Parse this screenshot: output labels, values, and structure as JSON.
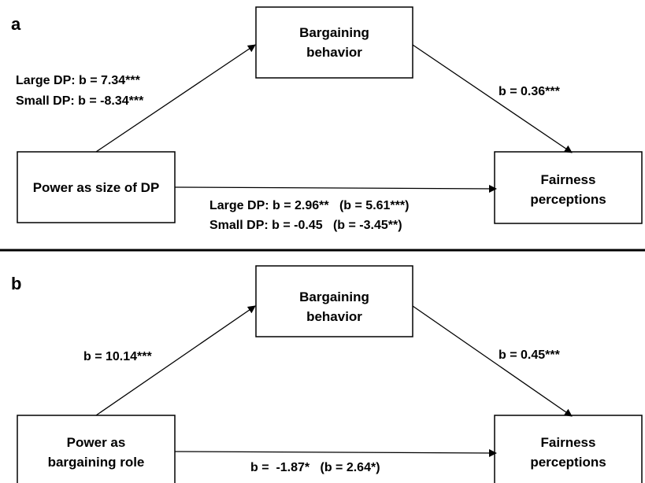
{
  "panels": [
    {
      "letter": "a",
      "nodes": {
        "mediator": [
          "Bargaining",
          "behavior"
        ],
        "predictor": [
          "Power as size of DP"
        ],
        "outcome": [
          "Fairness",
          "perceptions"
        ]
      },
      "paths": {
        "a_path": [
          "Large DP: b = 7.34***",
          "Small DP: b = -8.34***"
        ],
        "b_path": [
          "b = 0.36***"
        ],
        "c_path": [
          "Large DP: b = 2.96**   (b = 5.61***)",
          "Small DP: b = -0.45   (b = -3.45**)"
        ]
      }
    },
    {
      "letter": "b",
      "nodes": {
        "mediator": [
          "Bargaining",
          "behavior"
        ],
        "predictor": [
          "Power as",
          "bargaining role"
        ],
        "outcome": [
          "Fairness",
          "perceptions"
        ]
      },
      "paths": {
        "a_path": [
          "b = 10.14***"
        ],
        "b_path": [
          "b = 0.45***"
        ],
        "c_path": [
          "b =  -1.87*   (b = 2.64*)"
        ]
      }
    }
  ]
}
